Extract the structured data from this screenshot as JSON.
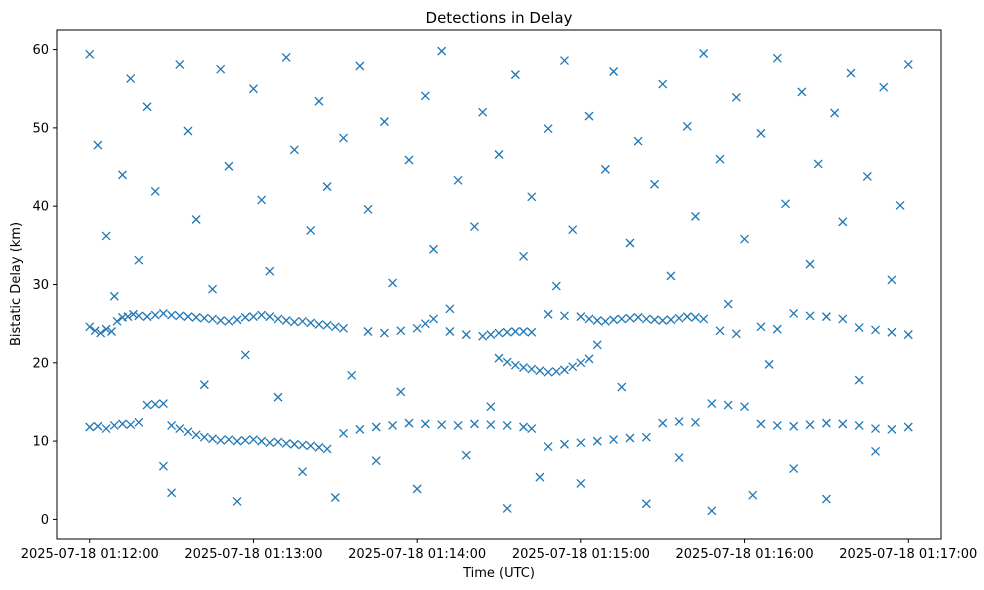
{
  "chart_data": {
    "type": "scatter",
    "title": "Detections in Delay",
    "xlabel": "Time (UTC)",
    "ylabel": "Bistatic Delay (km)",
    "x_tick_labels": [
      "2025-07-18 01:12:00",
      "2025-07-18 01:13:00",
      "2025-07-18 01:14:00",
      "2025-07-18 01:15:00",
      "2025-07-18 01:16:00",
      "2025-07-18 01:17:00"
    ],
    "y_ticks": [
      0,
      10,
      20,
      30,
      40,
      50,
      60
    ],
    "xlim": [
      "2025-07-18 01:11:48",
      "2025-07-18 01:17:12"
    ],
    "ylim": [
      -2.5,
      62.5
    ],
    "marker": "x",
    "color": "#1f77b4",
    "grid": false,
    "legend": "none",
    "series": [
      {
        "track": "band around 24-26 km",
        "points": [
          [
            "01:12:00",
            24.6
          ],
          [
            "01:12:02",
            24.1
          ],
          [
            "01:12:04",
            23.8
          ],
          [
            "01:12:06",
            24.3
          ],
          [
            "01:12:08",
            24.0
          ],
          [
            "01:12:10",
            25.3
          ],
          [
            "01:12:12",
            25.8
          ],
          [
            "01:12:14",
            25.9
          ],
          [
            "01:12:16",
            26.2
          ],
          [
            "01:12:18",
            26.0
          ],
          [
            "01:12:21",
            25.9
          ],
          [
            "01:12:24",
            26.1
          ],
          [
            "01:12:27",
            26.3
          ],
          [
            "01:12:30",
            26.1
          ],
          [
            "01:12:33",
            26.0
          ],
          [
            "01:12:36",
            25.9
          ],
          [
            "01:12:39",
            25.8
          ],
          [
            "01:12:42",
            25.7
          ],
          [
            "01:12:45",
            25.6
          ],
          [
            "01:12:48",
            25.4
          ],
          [
            "01:12:51",
            25.3
          ],
          [
            "01:12:54",
            25.5
          ],
          [
            "01:12:57",
            25.8
          ],
          [
            "01:13:00",
            25.9
          ],
          [
            "01:13:03",
            26.1
          ],
          [
            "01:13:06",
            25.9
          ],
          [
            "01:13:09",
            25.6
          ],
          [
            "01:13:12",
            25.4
          ],
          [
            "01:13:15",
            25.2
          ],
          [
            "01:13:18",
            25.3
          ],
          [
            "01:13:21",
            25.1
          ],
          [
            "01:13:24",
            24.9
          ],
          [
            "01:13:27",
            24.8
          ],
          [
            "01:13:30",
            24.6
          ],
          [
            "01:13:33",
            24.4
          ],
          [
            "01:13:42",
            24.0
          ],
          [
            "01:13:48",
            23.8
          ],
          [
            "01:13:54",
            24.1
          ],
          [
            "01:14:00",
            24.4
          ],
          [
            "01:14:03",
            25.0
          ],
          [
            "01:14:06",
            25.6
          ],
          [
            "01:14:12",
            24.0
          ],
          [
            "01:14:18",
            23.6
          ],
          [
            "01:14:24",
            23.4
          ],
          [
            "01:14:27",
            23.6
          ],
          [
            "01:14:30",
            23.8
          ],
          [
            "01:14:33",
            23.9
          ],
          [
            "01:14:36",
            24.0
          ],
          [
            "01:14:39",
            24.0
          ],
          [
            "01:14:42",
            23.9
          ],
          [
            "01:14:48",
            26.2
          ],
          [
            "01:14:54",
            26.0
          ],
          [
            "01:15:00",
            25.9
          ],
          [
            "01:15:03",
            25.6
          ],
          [
            "01:15:06",
            25.4
          ],
          [
            "01:15:09",
            25.3
          ],
          [
            "01:15:12",
            25.5
          ],
          [
            "01:15:15",
            25.6
          ],
          [
            "01:15:18",
            25.7
          ],
          [
            "01:15:21",
            25.8
          ],
          [
            "01:15:24",
            25.6
          ],
          [
            "01:15:27",
            25.5
          ],
          [
            "01:15:30",
            25.4
          ],
          [
            "01:15:33",
            25.5
          ],
          [
            "01:15:36",
            25.7
          ],
          [
            "01:15:39",
            25.9
          ],
          [
            "01:15:42",
            25.8
          ],
          [
            "01:15:45",
            25.6
          ],
          [
            "01:15:51",
            24.1
          ],
          [
            "01:15:57",
            23.7
          ],
          [
            "01:16:06",
            24.6
          ],
          [
            "01:16:12",
            24.3
          ],
          [
            "01:16:18",
            26.3
          ],
          [
            "01:16:24",
            26.0
          ],
          [
            "01:16:30",
            25.9
          ],
          [
            "01:16:36",
            25.6
          ],
          [
            "01:16:42",
            24.5
          ],
          [
            "01:16:48",
            24.2
          ],
          [
            "01:16:54",
            23.9
          ],
          [
            "01:17:00",
            23.6
          ]
        ]
      },
      {
        "track": "band around 10-12 km",
        "points": [
          [
            "01:12:00",
            11.8
          ],
          [
            "01:12:03",
            11.9
          ],
          [
            "01:12:06",
            11.6
          ],
          [
            "01:12:09",
            12.0
          ],
          [
            "01:12:12",
            12.2
          ],
          [
            "01:12:15",
            12.1
          ],
          [
            "01:12:18",
            12.4
          ],
          [
            "01:12:21",
            14.6
          ],
          [
            "01:12:24",
            14.7
          ],
          [
            "01:12:27",
            14.8
          ],
          [
            "01:12:30",
            12.0
          ],
          [
            "01:12:33",
            11.6
          ],
          [
            "01:12:36",
            11.2
          ],
          [
            "01:12:39",
            10.8
          ],
          [
            "01:12:42",
            10.5
          ],
          [
            "01:12:45",
            10.3
          ],
          [
            "01:12:48",
            10.1
          ],
          [
            "01:12:51",
            10.2
          ],
          [
            "01:12:54",
            10.0
          ],
          [
            "01:12:57",
            10.1
          ],
          [
            "01:13:00",
            10.2
          ],
          [
            "01:13:03",
            10.0
          ],
          [
            "01:13:06",
            9.8
          ],
          [
            "01:13:09",
            9.9
          ],
          [
            "01:13:12",
            9.7
          ],
          [
            "01:13:15",
            9.6
          ],
          [
            "01:13:18",
            9.5
          ],
          [
            "01:13:21",
            9.4
          ],
          [
            "01:13:24",
            9.2
          ],
          [
            "01:13:27",
            9.0
          ],
          [
            "01:13:33",
            11.0
          ],
          [
            "01:13:39",
            11.5
          ],
          [
            "01:13:45",
            11.8
          ],
          [
            "01:13:51",
            12.0
          ],
          [
            "01:13:57",
            12.3
          ],
          [
            "01:14:03",
            12.2
          ],
          [
            "01:14:09",
            12.1
          ],
          [
            "01:14:15",
            12.0
          ],
          [
            "01:14:21",
            12.2
          ],
          [
            "01:14:27",
            12.1
          ],
          [
            "01:14:33",
            12.0
          ],
          [
            "01:14:39",
            11.8
          ],
          [
            "01:14:42",
            11.6
          ],
          [
            "01:14:48",
            9.3
          ],
          [
            "01:14:54",
            9.6
          ],
          [
            "01:15:00",
            9.8
          ],
          [
            "01:15:06",
            10.0
          ],
          [
            "01:15:12",
            10.2
          ],
          [
            "01:15:18",
            10.4
          ],
          [
            "01:15:24",
            10.5
          ],
          [
            "01:15:30",
            12.3
          ],
          [
            "01:15:36",
            12.5
          ],
          [
            "01:15:42",
            12.4
          ],
          [
            "01:15:48",
            14.8
          ],
          [
            "01:15:54",
            14.6
          ],
          [
            "01:16:00",
            14.4
          ],
          [
            "01:16:06",
            12.2
          ],
          [
            "01:16:12",
            12.0
          ],
          [
            "01:16:18",
            11.9
          ],
          [
            "01:16:24",
            12.1
          ],
          [
            "01:16:30",
            12.3
          ],
          [
            "01:16:36",
            12.2
          ],
          [
            "01:16:42",
            12.0
          ],
          [
            "01:16:48",
            11.6
          ],
          [
            "01:16:54",
            11.5
          ],
          [
            "01:17:00",
            11.8
          ]
        ]
      },
      {
        "track": "dip around 19-21 km",
        "points": [
          [
            "01:14:30",
            20.6
          ],
          [
            "01:14:33",
            20.1
          ],
          [
            "01:14:36",
            19.7
          ],
          [
            "01:14:39",
            19.4
          ],
          [
            "01:14:42",
            19.2
          ],
          [
            "01:14:45",
            19.0
          ],
          [
            "01:14:48",
            18.8
          ],
          [
            "01:14:51",
            18.9
          ],
          [
            "01:14:54",
            19.1
          ],
          [
            "01:14:57",
            19.5
          ],
          [
            "01:15:00",
            20.0
          ],
          [
            "01:15:03",
            20.5
          ]
        ]
      },
      {
        "track": "scattered clutter",
        "points": [
          [
            "01:12:00",
            59.4
          ],
          [
            "01:12:03",
            47.8
          ],
          [
            "01:12:06",
            36.2
          ],
          [
            "01:12:09",
            28.5
          ],
          [
            "01:12:12",
            44.0
          ],
          [
            "01:12:15",
            56.3
          ],
          [
            "01:12:18",
            33.1
          ],
          [
            "01:12:21",
            52.7
          ],
          [
            "01:12:24",
            41.9
          ],
          [
            "01:12:27",
            6.8
          ],
          [
            "01:12:30",
            3.4
          ],
          [
            "01:12:33",
            58.1
          ],
          [
            "01:12:36",
            49.6
          ],
          [
            "01:12:39",
            38.3
          ],
          [
            "01:12:42",
            17.2
          ],
          [
            "01:12:45",
            29.4
          ],
          [
            "01:12:48",
            57.5
          ],
          [
            "01:12:51",
            45.1
          ],
          [
            "01:12:54",
            2.3
          ],
          [
            "01:12:57",
            21.0
          ],
          [
            "01:13:00",
            55.0
          ],
          [
            "01:13:03",
            40.8
          ],
          [
            "01:13:06",
            31.7
          ],
          [
            "01:13:09",
            15.6
          ],
          [
            "01:13:12",
            59.0
          ],
          [
            "01:13:15",
            47.2
          ],
          [
            "01:13:18",
            6.1
          ],
          [
            "01:13:21",
            36.9
          ],
          [
            "01:13:24",
            53.4
          ],
          [
            "01:13:27",
            42.5
          ],
          [
            "01:13:30",
            2.8
          ],
          [
            "01:13:33",
            48.7
          ],
          [
            "01:13:36",
            18.4
          ],
          [
            "01:13:39",
            57.9
          ],
          [
            "01:13:42",
            39.6
          ],
          [
            "01:13:45",
            7.5
          ],
          [
            "01:13:48",
            50.8
          ],
          [
            "01:13:51",
            30.2
          ],
          [
            "01:13:54",
            16.3
          ],
          [
            "01:13:57",
            45.9
          ],
          [
            "01:14:00",
            3.9
          ],
          [
            "01:14:03",
            54.1
          ],
          [
            "01:14:06",
            34.5
          ],
          [
            "01:14:09",
            59.8
          ],
          [
            "01:14:12",
            26.9
          ],
          [
            "01:14:15",
            43.3
          ],
          [
            "01:14:18",
            8.2
          ],
          [
            "01:14:21",
            37.4
          ],
          [
            "01:14:24",
            52.0
          ],
          [
            "01:14:27",
            14.4
          ],
          [
            "01:14:30",
            46.6
          ],
          [
            "01:14:33",
            1.4
          ],
          [
            "01:14:36",
            56.8
          ],
          [
            "01:14:39",
            33.6
          ],
          [
            "01:14:42",
            41.2
          ],
          [
            "01:14:45",
            5.4
          ],
          [
            "01:14:48",
            49.9
          ],
          [
            "01:14:51",
            29.8
          ],
          [
            "01:14:54",
            58.6
          ],
          [
            "01:14:57",
            37.0
          ],
          [
            "01:15:00",
            4.6
          ],
          [
            "01:15:03",
            51.5
          ],
          [
            "01:15:06",
            22.3
          ],
          [
            "01:15:09",
            44.7
          ],
          [
            "01:15:12",
            57.2
          ],
          [
            "01:15:15",
            16.9
          ],
          [
            "01:15:18",
            35.3
          ],
          [
            "01:15:21",
            48.3
          ],
          [
            "01:15:24",
            2.0
          ],
          [
            "01:15:27",
            42.8
          ],
          [
            "01:15:30",
            55.6
          ],
          [
            "01:15:33",
            31.1
          ],
          [
            "01:15:36",
            7.9
          ],
          [
            "01:15:39",
            50.2
          ],
          [
            "01:15:42",
            38.7
          ],
          [
            "01:15:45",
            59.5
          ],
          [
            "01:15:48",
            1.1
          ],
          [
            "01:15:51",
            46.0
          ],
          [
            "01:15:54",
            27.5
          ],
          [
            "01:15:57",
            53.9
          ],
          [
            "01:16:00",
            35.8
          ],
          [
            "01:16:03",
            3.1
          ],
          [
            "01:16:06",
            49.3
          ],
          [
            "01:16:09",
            19.8
          ],
          [
            "01:16:12",
            58.9
          ],
          [
            "01:16:15",
            40.3
          ],
          [
            "01:16:18",
            6.5
          ],
          [
            "01:16:21",
            54.6
          ],
          [
            "01:16:24",
            32.6
          ],
          [
            "01:16:27",
            45.4
          ],
          [
            "01:16:30",
            2.6
          ],
          [
            "01:16:33",
            51.9
          ],
          [
            "01:16:36",
            38.0
          ],
          [
            "01:16:39",
            57.0
          ],
          [
            "01:16:42",
            17.8
          ],
          [
            "01:16:45",
            43.8
          ],
          [
            "01:16:48",
            8.7
          ],
          [
            "01:16:51",
            55.2
          ],
          [
            "01:16:54",
            30.6
          ],
          [
            "01:16:57",
            40.1
          ],
          [
            "01:17:00",
            58.1
          ]
        ]
      }
    ]
  }
}
